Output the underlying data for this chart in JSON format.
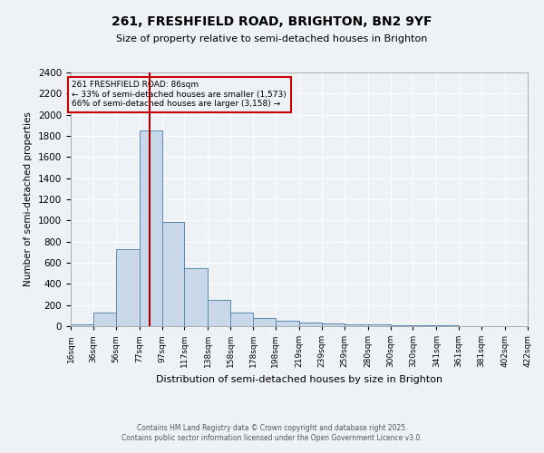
{
  "title": "261, FRESHFIELD ROAD, BRIGHTON, BN2 9YF",
  "subtitle": "Size of property relative to semi-detached houses in Brighton",
  "xlabel": "Distribution of semi-detached houses by size in Brighton",
  "ylabel": "Number of semi-detached properties",
  "bin_labels": [
    "16sqm",
    "36sqm",
    "56sqm",
    "77sqm",
    "97sqm",
    "117sqm",
    "138sqm",
    "158sqm",
    "178sqm",
    "198sqm",
    "219sqm",
    "239sqm",
    "259sqm",
    "280sqm",
    "300sqm",
    "320sqm",
    "341sqm",
    "361sqm",
    "381sqm",
    "402sqm",
    "422sqm"
  ],
  "bin_edges": [
    16,
    36,
    56,
    77,
    97,
    117,
    138,
    158,
    178,
    198,
    219,
    239,
    259,
    280,
    300,
    320,
    341,
    361,
    381,
    402,
    422
  ],
  "bar_heights": [
    15,
    130,
    725,
    1850,
    985,
    550,
    250,
    130,
    75,
    55,
    35,
    25,
    20,
    15,
    10,
    5,
    5,
    3,
    2,
    1
  ],
  "bar_color": "#c8d8e8",
  "bar_edge_color": "#5a8ab0",
  "property_size": 86,
  "red_line_color": "#aa0000",
  "annotation_line1": "261 FRESHFIELD ROAD: 86sqm",
  "annotation_line2": "← 33% of semi-detached houses are smaller (1,573)",
  "annotation_line3": "66% of semi-detached houses are larger (3,158) →",
  "annotation_box_color": "#cc0000",
  "ylim": [
    0,
    2400
  ],
  "yticks": [
    0,
    200,
    400,
    600,
    800,
    1000,
    1200,
    1400,
    1600,
    1800,
    2000,
    2200,
    2400
  ],
  "background_color": "#eef2f7",
  "grid_color": "#ffffff",
  "footer_line1": "Contains HM Land Registry data © Crown copyright and database right 2025.",
  "footer_line2": "Contains public sector information licensed under the Open Government Licence v3.0."
}
